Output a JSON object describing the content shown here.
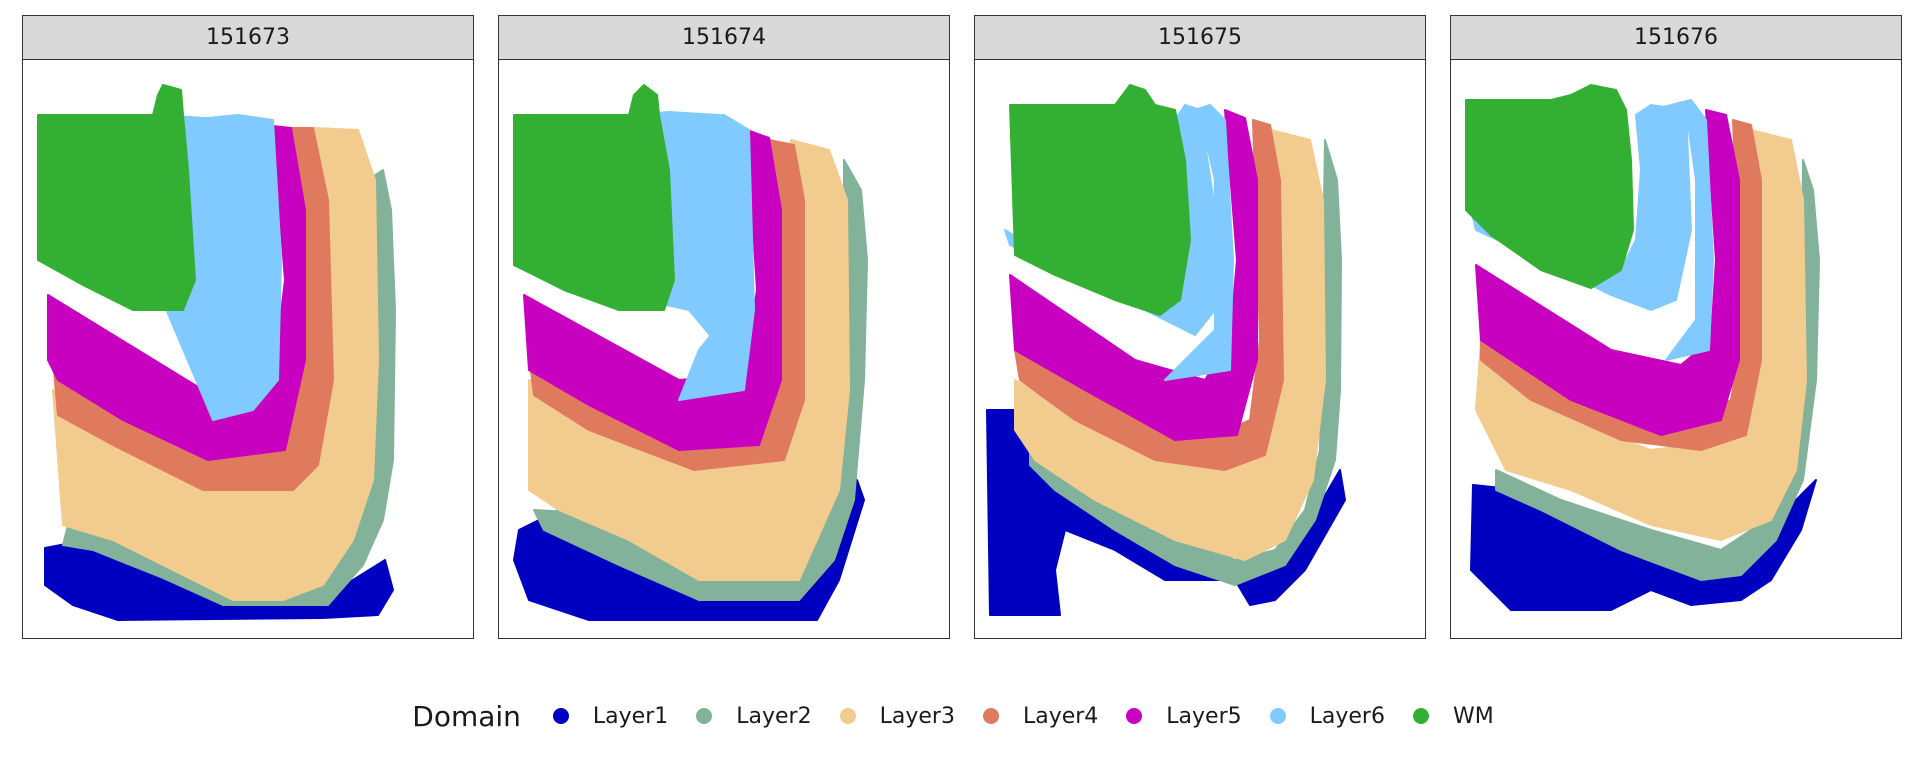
{
  "chart_data": {
    "type": "scatter",
    "panels": [
      {
        "label": "151673"
      },
      {
        "label": "151674"
      },
      {
        "label": "151675"
      },
      {
        "label": "151676"
      }
    ],
    "legend": {
      "title": "Domain",
      "position": "bottom",
      "entries": [
        {
          "label": "Layer1",
          "color": "#0000c0"
        },
        {
          "label": "Layer2",
          "color": "#82b29a"
        },
        {
          "label": "Layer3",
          "color": "#f2cc8f"
        },
        {
          "label": "Layer4",
          "color": "#e07a5f"
        },
        {
          "label": "Layer5",
          "color": "#c800c0"
        },
        {
          "label": "Layer6",
          "color": "#80caff"
        },
        {
          "label": "WM",
          "color": "#33b034"
        }
      ]
    },
    "axes": "hidden",
    "grid": false
  }
}
